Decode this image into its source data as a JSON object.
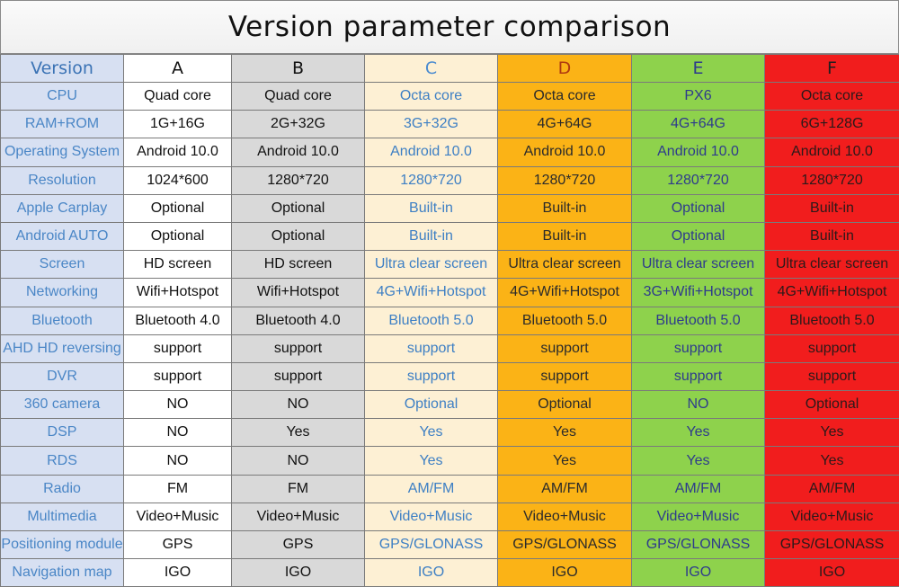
{
  "title": "Version parameter comparison",
  "header": {
    "label": "Version",
    "columns": [
      "A",
      "B",
      "C",
      "D",
      "E",
      "F"
    ]
  },
  "colors": {
    "label_bg": "#d7e0f2",
    "A_bg": "#ffffff",
    "B_bg": "#d9d9d9",
    "C_bg": "#fdf0d4",
    "D_bg": "#fbb316",
    "E_bg": "#8ed24c",
    "F_bg": "#f11d1d"
  },
  "rows": [
    {
      "label": "CPU",
      "values": [
        "Quad core",
        "Quad core",
        "Octa core",
        "Octa core",
        "PX6",
        "Octa core"
      ]
    },
    {
      "label": "RAM+ROM",
      "values": [
        "1G+16G",
        "2G+32G",
        "3G+32G",
        "4G+64G",
        "4G+64G",
        "6G+128G"
      ]
    },
    {
      "label": "Operating System",
      "values": [
        "Android 10.0",
        "Android 10.0",
        "Android 10.0",
        "Android 10.0",
        "Android 10.0",
        "Android 10.0"
      ]
    },
    {
      "label": "Resolution",
      "values": [
        "1024*600",
        "1280*720",
        "1280*720",
        "1280*720",
        "1280*720",
        "1280*720"
      ]
    },
    {
      "label": "Apple Carplay",
      "values": [
        "Optional",
        "Optional",
        "Built-in",
        "Built-in",
        "Optional",
        "Built-in"
      ]
    },
    {
      "label": "Android AUTO",
      "values": [
        "Optional",
        "Optional",
        "Built-in",
        "Built-in",
        "Optional",
        "Built-in"
      ]
    },
    {
      "label": "Screen",
      "values": [
        "HD screen",
        "HD screen",
        "Ultra clear screen",
        "Ultra clear screen",
        "Ultra clear screen",
        "Ultra clear screen"
      ]
    },
    {
      "label": "Networking",
      "values": [
        "Wifi+Hotspot",
        "Wifi+Hotspot",
        "4G+Wifi+Hotspot",
        "4G+Wifi+Hotspot",
        "3G+Wifi+Hotspot",
        "4G+Wifi+Hotspot"
      ]
    },
    {
      "label": "Bluetooth",
      "values": [
        "Bluetooth 4.0",
        "Bluetooth 4.0",
        "Bluetooth 5.0",
        "Bluetooth 5.0",
        "Bluetooth 5.0",
        "Bluetooth 5.0"
      ]
    },
    {
      "label": "AHD HD reversing",
      "values": [
        "support",
        "support",
        "support",
        "support",
        "support",
        "support"
      ]
    },
    {
      "label": "DVR",
      "values": [
        "support",
        "support",
        "support",
        "support",
        "support",
        "support"
      ]
    },
    {
      "label": "360 camera",
      "values": [
        "NO",
        "NO",
        "Optional",
        "Optional",
        "NO",
        "Optional"
      ]
    },
    {
      "label": "DSP",
      "values": [
        "NO",
        "Yes",
        "Yes",
        "Yes",
        "Yes",
        "Yes"
      ]
    },
    {
      "label": "RDS",
      "values": [
        "NO",
        "NO",
        "Yes",
        "Yes",
        "Yes",
        "Yes"
      ]
    },
    {
      "label": "Radio",
      "values": [
        "FM",
        "FM",
        "AM/FM",
        "AM/FM",
        "AM/FM",
        "AM/FM"
      ]
    },
    {
      "label": "Multimedia",
      "values": [
        "Video+Music",
        "Video+Music",
        "Video+Music",
        "Video+Music",
        "Video+Music",
        "Video+Music"
      ]
    },
    {
      "label": "Positioning module",
      "values": [
        "GPS",
        "GPS",
        "GPS/GLONASS",
        "GPS/GLONASS",
        "GPS/GLONASS",
        "GPS/GLONASS"
      ]
    },
    {
      "label": "Navigation map",
      "values": [
        "IGO",
        "IGO",
        "IGO",
        "IGO",
        "IGO",
        "IGO"
      ]
    }
  ]
}
